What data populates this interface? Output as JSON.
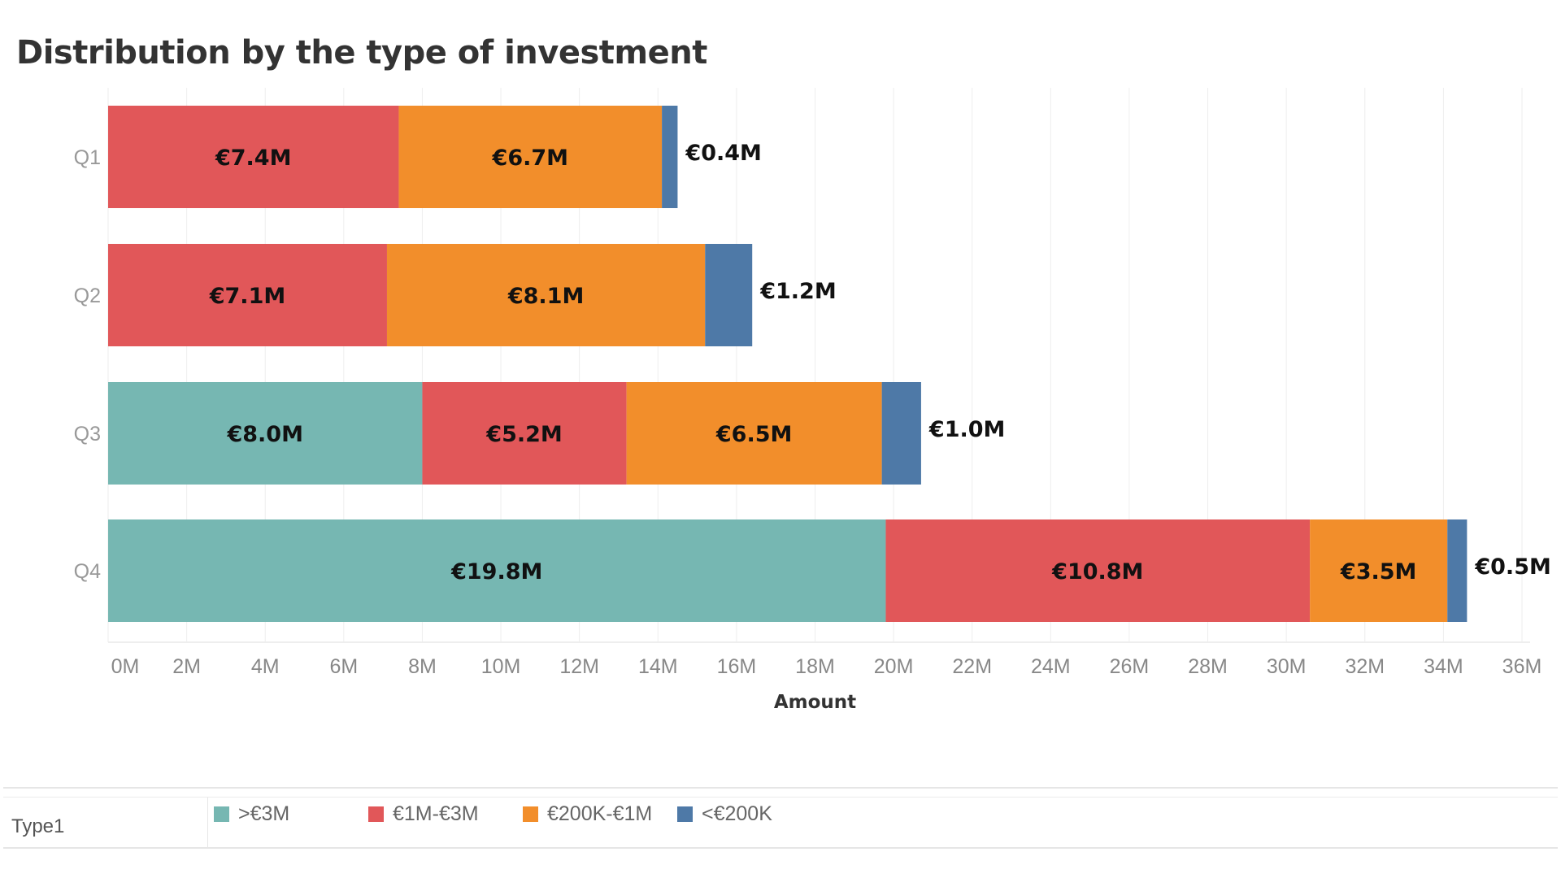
{
  "chart_data": {
    "type": "bar",
    "orientation": "horizontal",
    "stacked": true,
    "title": "Distribution by the type of investment",
    "xlabel": "Amount",
    "ylabel": "",
    "xlim": [
      0,
      36
    ],
    "x_ticks": [
      "0M",
      "2M",
      "4M",
      "6M",
      "8M",
      "10M",
      "12M",
      "14M",
      "16M",
      "18M",
      "20M",
      "22M",
      "24M",
      "26M",
      "28M",
      "30M",
      "32M",
      "34M",
      "36M"
    ],
    "categories": [
      "Q1",
      "Q2",
      "Q3",
      "Q4"
    ],
    "series": [
      {
        "name": ">€3M",
        "color": "#76b7b2",
        "values": [
          0,
          0,
          8.0,
          19.8
        ],
        "labels": [
          "",
          "",
          "€8.0M",
          "€19.8M"
        ]
      },
      {
        "name": "€1M-€3M",
        "color": "#e15759",
        "values": [
          7.4,
          7.1,
          5.2,
          10.8
        ],
        "labels": [
          "€7.4M",
          "€7.1M",
          "€5.2M",
          "€10.8M"
        ]
      },
      {
        "name": "€200K-€1M",
        "color": "#f28e2b",
        "values": [
          6.7,
          8.1,
          6.5,
          3.5
        ],
        "labels": [
          "€6.7M",
          "€8.1M",
          "€6.5M",
          "€3.5M"
        ]
      },
      {
        "name": "<€200K",
        "color": "#4e79a7",
        "values": [
          0.4,
          1.2,
          1.0,
          0.5
        ],
        "labels": [
          "€0.4M",
          "€1.2M",
          "€1.0M",
          "€0.5M"
        ]
      }
    ],
    "legend": {
      "title": "Type1",
      "placement": "bottom"
    },
    "grid": true
  }
}
